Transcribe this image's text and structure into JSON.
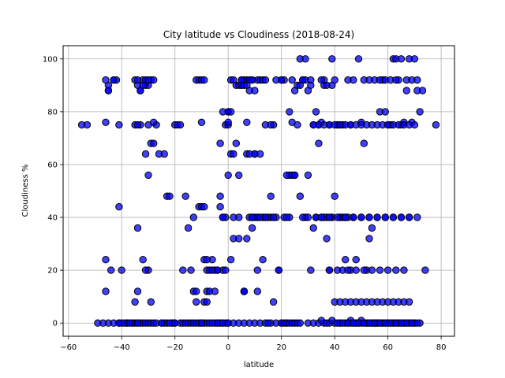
{
  "chart_data": {
    "type": "scatter",
    "title": "City latitude vs Cloudiness (2018-08-24)",
    "xlabel": "latitude",
    "ylabel": "Cloudiness %",
    "xlim": [
      -62,
      85
    ],
    "ylim": [
      -5,
      105
    ],
    "xticks": [
      -60,
      -40,
      -20,
      0,
      20,
      40,
      60,
      80
    ],
    "yticks": [
      0,
      20,
      40,
      60,
      80,
      100
    ],
    "grid": true,
    "marker_color": "#0000ff",
    "marker_edge": "#000000",
    "x": [
      -55,
      -53,
      -46,
      -45,
      -45,
      -43,
      -42,
      -41,
      -46,
      -46,
      -45,
      -43,
      -41,
      -38,
      -36,
      -35,
      -34,
      -33,
      -32,
      -31,
      -30,
      -29,
      -28,
      -27,
      -25,
      -23,
      -21,
      -20,
      -18,
      -17,
      -16,
      -15,
      -14,
      -13,
      -12,
      -11,
      -10,
      -9,
      -8,
      -7,
      -5,
      -4,
      -3,
      -2,
      -1,
      0,
      -35,
      -34,
      -33,
      -32,
      -31,
      -30,
      -29,
      -28,
      -35,
      -33,
      -31,
      -30,
      -29,
      -27,
      -34,
      -32,
      -35,
      -34,
      -30,
      -29,
      -23,
      -20,
      -19,
      -18,
      -41,
      -40,
      -38,
      -36,
      -34,
      -24,
      -15,
      -12,
      -11,
      -10,
      -9,
      -13,
      -12,
      -9,
      -8,
      -7,
      -5,
      -4,
      -3,
      -2,
      -1,
      0,
      1,
      2,
      3,
      4,
      5,
      6,
      7,
      8,
      9,
      10,
      11,
      12,
      13,
      14,
      -43,
      -41,
      -34,
      -33,
      -31,
      -30,
      -24,
      -21,
      -17,
      -14,
      -13,
      -11,
      -10,
      -9,
      -8,
      -7,
      -6,
      -5,
      -4,
      -3,
      -2,
      -1,
      0,
      1,
      -46,
      -45,
      -34,
      -32,
      -30,
      -28,
      -25,
      -22,
      -20,
      -10,
      -6,
      -4,
      -2,
      0,
      2,
      4,
      6,
      8,
      10,
      12,
      14,
      16,
      18,
      20,
      22,
      -9,
      -8,
      -10,
      -6,
      -3,
      -2,
      0,
      1,
      2,
      4,
      6,
      7,
      8,
      9,
      10,
      11,
      13,
      16,
      17,
      0,
      2,
      4,
      5,
      6,
      7,
      8,
      9,
      10,
      11,
      12,
      14,
      15,
      16,
      17,
      18,
      19,
      20,
      21,
      22,
      23,
      24,
      25,
      26,
      27,
      -2,
      -1,
      0,
      1,
      2,
      3,
      5,
      6,
      7,
      9,
      11,
      13,
      15,
      17,
      19,
      21,
      23,
      25,
      27,
      29,
      31,
      33,
      35,
      37,
      39,
      20,
      21,
      22,
      23,
      24,
      25,
      26,
      27,
      28,
      29,
      30,
      31,
      32,
      33,
      34,
      35,
      36,
      37,
      38,
      39,
      40,
      41,
      42,
      43,
      44,
      45,
      46,
      47,
      48,
      5,
      6,
      7,
      8,
      9,
      10,
      11,
      12,
      14,
      16,
      18,
      20,
      22,
      24,
      26,
      28,
      30,
      32,
      34,
      36,
      38,
      40,
      42,
      44,
      46,
      50,
      51,
      52,
      53,
      54,
      55,
      56,
      57,
      58,
      59,
      60,
      61,
      62,
      63,
      64,
      65,
      66,
      67,
      68,
      69,
      70,
      71,
      72,
      73,
      74,
      23,
      25,
      27,
      29,
      31,
      33,
      35,
      37,
      39,
      41,
      43,
      45,
      47,
      49,
      51,
      53,
      55,
      57,
      59,
      61,
      63,
      65,
      67,
      69,
      71,
      30,
      32,
      34,
      36,
      38,
      40,
      42,
      44,
      46,
      48,
      50,
      52,
      54,
      56,
      58,
      60,
      62,
      64,
      66,
      68,
      70,
      72,
      78,
      45,
      46,
      47,
      48,
      49,
      50,
      51,
      52,
      53,
      54,
      55,
      56,
      57,
      58,
      59,
      60,
      61,
      62,
      63,
      64,
      65,
      66,
      67,
      68,
      69,
      70,
      35,
      37,
      39,
      41,
      43,
      45,
      47,
      49,
      51,
      53,
      55,
      57,
      59,
      61,
      63,
      65,
      67,
      69,
      71,
      40,
      42,
      44,
      46,
      48,
      50,
      52,
      54,
      56,
      58,
      60,
      62,
      64,
      66,
      68,
      38,
      41,
      43,
      45,
      48,
      51,
      54,
      57,
      60,
      63,
      66,
      36,
      39,
      42,
      44,
      47,
      50,
      53,
      56,
      59,
      62,
      65,
      68,
      32,
      34,
      36,
      38,
      40,
      42,
      44,
      46,
      48,
      50,
      52,
      54,
      56,
      58,
      60,
      62,
      64,
      66,
      68,
      70,
      28,
      30,
      33,
      35,
      38,
      41,
      44,
      47,
      50,
      53,
      56,
      59,
      62,
      65,
      68,
      71,
      -26,
      -16,
      -28,
      -39,
      -40,
      -22,
      -12,
      -8,
      -31,
      4,
      9,
      14,
      24,
      -37,
      -44,
      -47,
      -49
    ],
    "y": [
      75,
      75,
      92,
      90,
      88,
      92,
      92,
      75,
      24,
      12,
      0,
      0,
      0,
      0,
      0,
      0,
      0,
      0,
      0,
      0,
      0,
      0,
      0,
      0,
      0,
      0,
      0,
      0,
      0,
      0,
      0,
      0,
      0,
      0,
      0,
      0,
      0,
      0,
      0,
      0,
      0,
      0,
      0,
      0,
      0,
      0,
      92,
      90,
      88,
      92,
      90,
      90,
      92,
      92,
      75,
      75,
      64,
      20,
      8,
      75,
      12,
      24,
      8,
      36,
      56,
      68,
      48,
      75,
      75,
      75,
      44,
      0,
      0,
      0,
      0,
      64,
      36,
      92,
      92,
      92,
      92,
      40,
      8,
      8,
      12,
      12,
      20,
      20,
      48,
      20,
      40,
      80,
      92,
      92,
      90,
      90,
      92,
      92,
      92,
      88,
      92,
      88,
      92,
      92,
      92,
      92,
      92,
      0,
      75,
      88,
      92,
      75,
      0,
      0,
      20,
      20,
      12,
      44,
      44,
      44,
      20,
      20,
      20,
      12,
      20,
      44,
      40,
      75,
      56,
      64,
      76,
      88,
      92,
      90,
      92,
      76,
      0,
      0,
      0,
      0,
      24,
      0,
      0,
      0,
      0,
      0,
      0,
      0,
      0,
      0,
      0,
      0,
      0,
      0,
      0,
      24,
      24,
      76,
      0,
      68,
      80,
      80,
      24,
      32,
      40,
      12,
      64,
      40,
      40,
      40,
      12,
      40,
      48,
      8,
      75,
      64,
      56,
      92,
      12,
      32,
      64,
      40,
      64,
      20,
      64,
      40,
      0,
      40,
      75,
      40,
      20,
      0,
      0,
      0,
      0,
      0,
      0,
      0,
      0,
      40,
      20,
      76,
      80,
      40,
      68,
      90,
      12,
      76,
      36,
      40,
      24,
      40,
      40,
      20,
      40,
      40,
      56,
      48,
      40,
      20,
      40,
      40,
      40,
      40,
      92,
      92,
      40,
      56,
      92,
      88,
      90,
      90,
      92,
      92,
      88,
      92,
      75,
      40,
      68,
      76,
      90,
      32,
      75,
      90,
      48,
      75,
      40,
      40,
      24,
      40,
      20,
      40,
      24,
      90,
      90,
      90,
      92,
      92,
      64,
      40,
      40,
      75,
      75,
      92,
      92,
      56,
      56,
      75,
      92,
      56,
      36,
      75,
      92,
      20,
      92,
      0,
      40,
      75,
      76,
      68,
      20,
      32,
      36,
      0,
      0,
      80,
      92,
      80,
      75,
      75,
      100,
      100,
      92,
      75,
      76,
      88,
      100,
      76,
      100,
      88,
      80,
      88,
      20,
      80,
      56,
      100,
      100,
      90,
      80,
      92,
      90,
      100,
      75,
      75,
      92,
      92,
      100,
      92,
      92,
      92,
      92,
      92,
      92,
      92,
      100,
      92,
      92,
      92,
      0,
      0,
      0,
      0,
      0,
      0,
      0,
      0,
      0,
      0,
      0,
      0,
      0,
      0,
      0,
      0,
      0,
      0,
      0,
      0,
      0,
      0,
      75,
      0,
      1,
      0,
      0,
      0,
      1,
      0,
      0,
      0,
      0,
      0,
      0,
      0,
      0,
      0,
      0,
      0,
      0,
      0,
      0,
      0,
      0,
      0,
      0,
      0,
      0,
      1,
      0,
      1,
      0,
      0,
      0,
      0,
      0,
      0,
      0,
      0,
      0,
      0,
      0,
      0,
      0,
      0,
      0,
      0,
      8,
      8,
      8,
      8,
      8,
      8,
      8,
      8,
      8,
      8,
      8,
      8,
      8,
      8,
      8,
      20,
      20,
      20,
      20,
      20,
      20,
      20,
      20,
      20,
      20,
      20,
      40,
      40,
      40,
      40,
      40,
      40,
      40,
      40,
      40,
      40,
      40,
      40,
      75,
      75,
      75,
      75,
      75,
      75,
      75,
      75,
      75,
      75,
      75,
      75,
      75,
      75,
      75,
      75,
      75,
      75,
      75,
      75,
      40,
      40,
      40,
      40,
      40,
      40,
      40,
      40,
      40,
      40,
      40,
      40,
      40,
      40,
      40,
      40,
      64,
      48,
      68,
      0,
      20,
      48,
      12,
      8,
      20,
      32,
      40,
      40,
      76,
      0,
      20,
      0,
      0
    ]
  }
}
